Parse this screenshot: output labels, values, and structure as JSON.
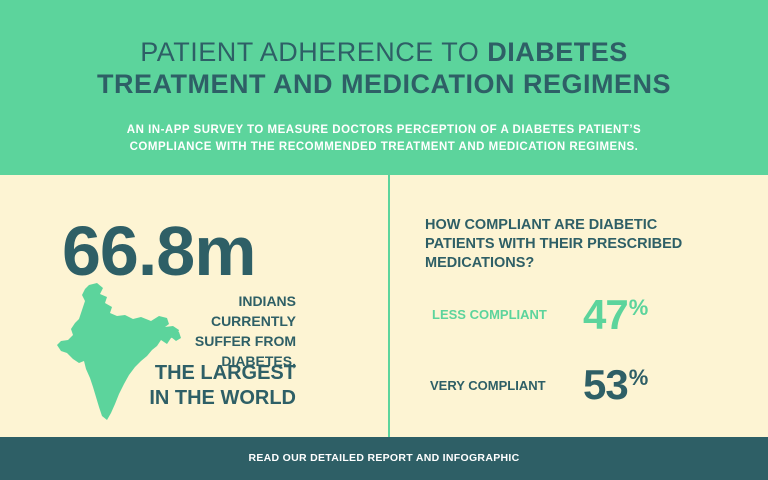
{
  "header": {
    "title_light": "PATIENT ADHERENCE TO ",
    "title_bold_1": "DIABETES",
    "title_bold_2": "TREATMENT AND MEDICATION REGIMENS",
    "subtitle_line1": "AN IN-APP SURVEY TO MEASURE DOCTORS PERCEPTION OF A DIABETES PATIENT’S",
    "subtitle_line2": "COMPLIANCE WITH THE RECOMMENDED TREATMENT AND MEDICATION REGIMENS."
  },
  "left_panel": {
    "stat": "66.8m",
    "desc_line1": "INDIANS CURRENTLY",
    "desc_line2": "SUFFER FROM",
    "desc_line3": "DIABETES,",
    "emph_line1": "THE LARGEST",
    "emph_line2": "IN THE WORLD"
  },
  "right_panel": {
    "question_line1": "HOW COMPLIANT ARE DIABETIC",
    "question_line2": "PATIENTS WITH THEIR PRESCRIBED",
    "question_line3": "MEDICATIONS?",
    "rows": [
      {
        "label": "LESS COMPLIANT",
        "value": "47",
        "unit": "%",
        "color": "#5cd49c"
      },
      {
        "label": "VERY COMPLIANT",
        "value": "53",
        "unit": "%",
        "color": "#2e5f66"
      }
    ]
  },
  "footer": {
    "link_text": "READ OUR DETAILED REPORT AND INFOGRAPHIC"
  },
  "colors": {
    "mint": "#5cd49c",
    "teal_dark": "#2e5f66",
    "cream": "#fdf4d3",
    "white": "#ffffff"
  },
  "icons": {
    "map": "india-map-icon"
  }
}
